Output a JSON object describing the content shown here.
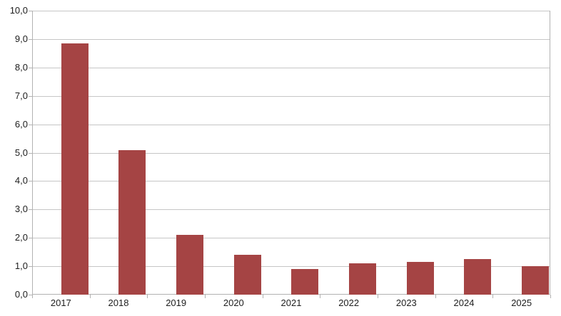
{
  "chart_data": {
    "type": "bar",
    "title": "",
    "xlabel": "",
    "ylabel": "",
    "categories": [
      "2017",
      "2018",
      "2019",
      "2020",
      "2021",
      "2022",
      "2023",
      "2024",
      "2025"
    ],
    "values": [
      8.85,
      5.1,
      2.1,
      1.4,
      0.9,
      1.1,
      1.15,
      1.25,
      1.0
    ],
    "ylim": [
      0,
      10
    ],
    "ytick_step": 1,
    "ytick_labels": [
      "0,0",
      "1,0",
      "2,0",
      "3,0",
      "4,0",
      "5,0",
      "6,0",
      "7,0",
      "8,0",
      "9,0",
      "10,0"
    ],
    "grid": true,
    "legend_position": "none",
    "colors": {
      "bar": "#a54444",
      "grid": "#c6c6c6",
      "axis": "#b2b2b2",
      "label": "#1d1d1d",
      "background": "#ffffff"
    }
  }
}
